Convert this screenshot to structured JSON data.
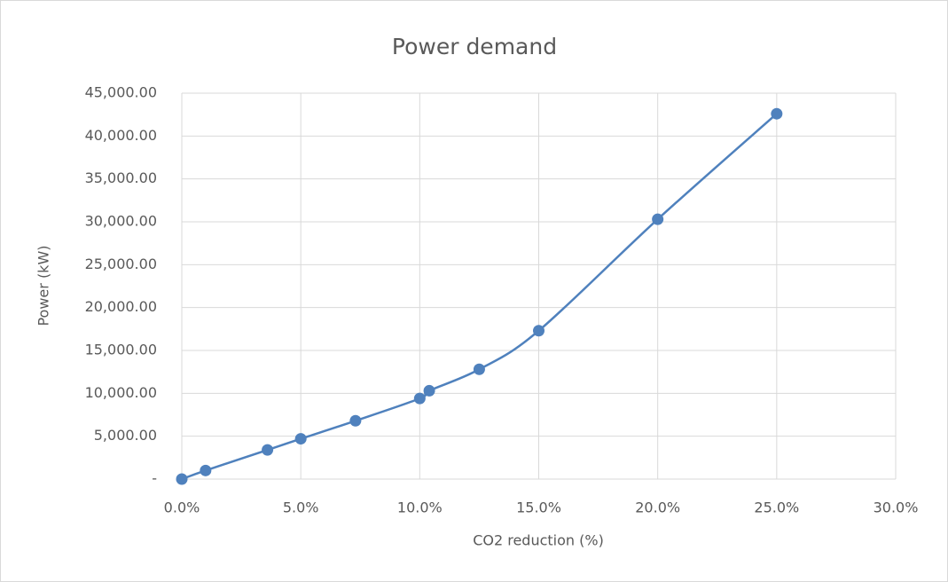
{
  "chart_data": {
    "type": "scatter",
    "title": "Power demand",
    "x_label": "CO2 reduction (%)",
    "y_label": "Power (kW)",
    "series": [
      {
        "name": "Power demand",
        "color": "#4f81bd",
        "x": [
          0,
          1.0,
          3.6,
          5.0,
          7.3,
          10.0,
          10.4,
          12.5,
          15.0,
          20.0,
          25.0
        ],
        "values": [
          0,
          1000,
          3400,
          4700,
          6800,
          9400,
          10300,
          12800,
          17300,
          30300,
          42600
        ]
      }
    ],
    "xlim": [
      0,
      30
    ],
    "xticks": [
      {
        "value": 0,
        "label": "0.0%"
      },
      {
        "value": 5,
        "label": "5.0%"
      },
      {
        "value": 10,
        "label": "10.0%"
      },
      {
        "value": 15,
        "label": "15.0%"
      },
      {
        "value": 20,
        "label": "20.0%"
      },
      {
        "value": 25,
        "label": "25.0%"
      },
      {
        "value": 30,
        "label": "30.0%"
      }
    ],
    "ylim": [
      0,
      45000
    ],
    "yticks": [
      {
        "value": 0,
        "label": "-"
      },
      {
        "value": 5000,
        "label": "5,000.00"
      },
      {
        "value": 10000,
        "label": "10,000.00"
      },
      {
        "value": 15000,
        "label": "15,000.00"
      },
      {
        "value": 20000,
        "label": "20,000.00"
      },
      {
        "value": 25000,
        "label": "25,000.00"
      },
      {
        "value": 30000,
        "label": "30,000.00"
      },
      {
        "value": 35000,
        "label": "35,000.00"
      },
      {
        "value": 40000,
        "label": "40,000.00"
      },
      {
        "value": 45000,
        "label": "45,000.00"
      }
    ],
    "grid": true,
    "smooth": true
  }
}
